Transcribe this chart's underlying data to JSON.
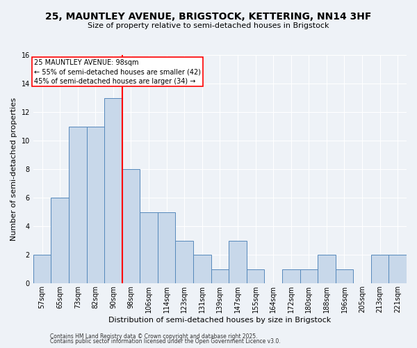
{
  "title": "25, MAUNTLEY AVENUE, BRIGSTOCK, KETTERING, NN14 3HF",
  "subtitle": "Size of property relative to semi-detached houses in Brigstock",
  "xlabel": "Distribution of semi-detached houses by size in Brigstock",
  "ylabel": "Number of semi-detached properties",
  "bin_labels": [
    "57sqm",
    "65sqm",
    "73sqm",
    "82sqm",
    "90sqm",
    "98sqm",
    "106sqm",
    "114sqm",
    "123sqm",
    "131sqm",
    "139sqm",
    "147sqm",
    "155sqm",
    "164sqm",
    "172sqm",
    "180sqm",
    "188sqm",
    "196sqm",
    "205sqm",
    "213sqm",
    "221sqm"
  ],
  "bar_heights": [
    2,
    6,
    11,
    11,
    13,
    8,
    5,
    5,
    3,
    2,
    1,
    3,
    1,
    0,
    1,
    1,
    2,
    1,
    0,
    2,
    2
  ],
  "bar_color": "#c8d8ea",
  "bar_edge_color": "#5588bb",
  "property_line_color": "red",
  "property_bin_index": 5,
  "annotation_title": "25 MAUNTLEY AVENUE: 98sqm",
  "annotation_line1": "← 55% of semi-detached houses are smaller (42)",
  "annotation_line2": "45% of semi-detached houses are larger (34) →",
  "ylim": [
    0,
    16
  ],
  "yticks": [
    0,
    2,
    4,
    6,
    8,
    10,
    12,
    14,
    16
  ],
  "footer1": "Contains HM Land Registry data © Crown copyright and database right 2025.",
  "footer2": "Contains public sector information licensed under the Open Government Licence v3.0.",
  "bg_color": "#eef2f7",
  "plot_bg_color": "#eef2f7",
  "grid_color": "#ffffff",
  "title_fontsize": 10,
  "subtitle_fontsize": 8,
  "xlabel_fontsize": 8,
  "ylabel_fontsize": 8,
  "tick_fontsize": 7,
  "annotation_fontsize": 7,
  "footer_fontsize": 5.5
}
